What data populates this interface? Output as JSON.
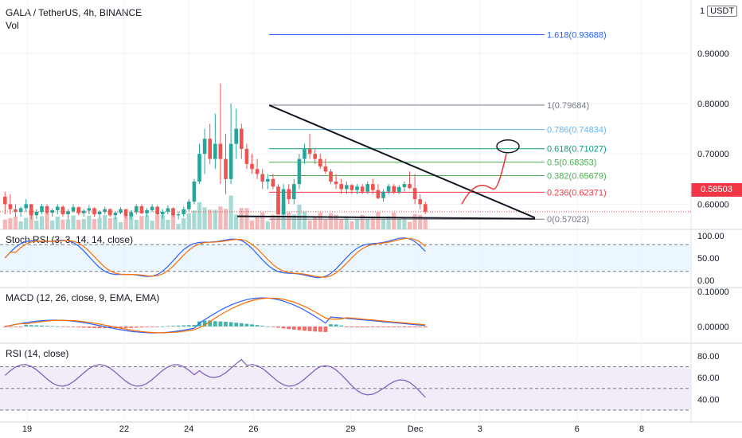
{
  "header": {
    "symbol": "GALA / TetherUS, 4h, BINANCE",
    "vol_label": "Vol",
    "currency_prefix": "1",
    "currency": "USDT",
    "last_price": "0.58503"
  },
  "panes": {
    "stoch_label": "Stoch RSI (3, 3, 14, 14, close)",
    "macd_label": "MACD (12, 26, close, 9, EMA, EMA)",
    "rsi_label": "RSI (14, close)"
  },
  "chart_data": {
    "type": "candlestick",
    "x_range": [
      18,
      9.2
    ],
    "x_ticks": [
      {
        "label": "19",
        "day": 19
      },
      {
        "label": "22",
        "day": 22
      },
      {
        "label": "24",
        "day": 24
      },
      {
        "label": "26",
        "day": 26
      },
      {
        "label": "29",
        "day": 29
      },
      {
        "label": "Dec",
        "day": 31
      },
      {
        "label": "3",
        "day": 33
      },
      {
        "label": "6",
        "day": 36
      },
      {
        "label": "8",
        "day": 38
      }
    ],
    "price_axis": {
      "min": 0.55,
      "max": 0.99,
      "ticks": [
        "0.90000",
        "0.80000",
        "0.70000",
        "0.60000"
      ]
    },
    "fib_levels": [
      {
        "ratio": "1.618",
        "price": 0.93688,
        "label": "1.618(0.93688)",
        "color": "#2962ff"
      },
      {
        "ratio": "1",
        "price": 0.79684,
        "label": "1(0.79684)",
        "color": "#787b86"
      },
      {
        "ratio": "0.786",
        "price": 0.74834,
        "label": "0.786(0.74834)",
        "color": "#64b5f6"
      },
      {
        "ratio": "0.618",
        "price": 0.71027,
        "label": "0.618(0.71027)",
        "color": "#089981"
      },
      {
        "ratio": "0.5",
        "price": 0.68353,
        "label": "0.5(0.68353)",
        "color": "#4caf50"
      },
      {
        "ratio": "0.382",
        "price": 0.65679,
        "label": "0.382(0.65679)",
        "color": "#4caf50"
      },
      {
        "ratio": "0.236",
        "price": 0.62371,
        "label": "0.236(0.62371)",
        "color": "#f23645"
      },
      {
        "ratio": "0",
        "price": 0.57023,
        "label": "0(0.57023)",
        "color": "#787b86"
      }
    ],
    "last_price": 0.58503,
    "candles": [
      [
        0.615,
        0.625,
        0.58,
        0.6
      ],
      [
        0.6,
        0.62,
        0.58,
        0.59
      ],
      [
        0.59,
        0.6,
        0.575,
        0.585
      ],
      [
        0.585,
        0.595,
        0.575,
        0.592
      ],
      [
        0.592,
        0.61,
        0.585,
        0.6
      ],
      [
        0.6,
        0.6,
        0.57,
        0.578
      ],
      [
        0.578,
        0.59,
        0.57,
        0.585
      ],
      [
        0.585,
        0.6,
        0.58,
        0.596
      ],
      [
        0.596,
        0.6,
        0.58,
        0.583
      ],
      [
        0.583,
        0.592,
        0.575,
        0.588
      ],
      [
        0.588,
        0.6,
        0.58,
        0.595
      ],
      [
        0.595,
        0.598,
        0.575,
        0.58
      ],
      [
        0.58,
        0.59,
        0.57,
        0.586
      ],
      [
        0.586,
        0.6,
        0.583,
        0.594
      ],
      [
        0.594,
        0.596,
        0.578,
        0.582
      ],
      [
        0.582,
        0.59,
        0.575,
        0.587
      ],
      [
        0.587,
        0.598,
        0.58,
        0.592
      ],
      [
        0.592,
        0.594,
        0.575,
        0.58
      ],
      [
        0.58,
        0.588,
        0.572,
        0.585
      ],
      [
        0.585,
        0.595,
        0.58,
        0.59
      ],
      [
        0.59,
        0.592,
        0.575,
        0.578
      ],
      [
        0.578,
        0.586,
        0.57,
        0.583
      ],
      [
        0.583,
        0.594,
        0.58,
        0.59
      ],
      [
        0.59,
        0.59,
        0.572,
        0.576
      ],
      [
        0.576,
        0.588,
        0.57,
        0.584
      ],
      [
        0.584,
        0.6,
        0.58,
        0.596
      ],
      [
        0.596,
        0.6,
        0.58,
        0.582
      ],
      [
        0.582,
        0.592,
        0.575,
        0.588
      ],
      [
        0.588,
        0.6,
        0.585,
        0.595
      ],
      [
        0.595,
        0.598,
        0.578,
        0.58
      ],
      [
        0.58,
        0.59,
        0.572,
        0.585
      ],
      [
        0.585,
        0.598,
        0.58,
        0.592
      ],
      [
        0.592,
        0.594,
        0.575,
        0.578
      ],
      [
        0.578,
        0.585,
        0.57,
        0.58
      ],
      [
        0.58,
        0.595,
        0.575,
        0.59
      ],
      [
        0.59,
        0.61,
        0.585,
        0.605
      ],
      [
        0.605,
        0.65,
        0.6,
        0.645
      ],
      [
        0.645,
        0.72,
        0.64,
        0.7
      ],
      [
        0.7,
        0.75,
        0.66,
        0.73
      ],
      [
        0.73,
        0.76,
        0.68,
        0.69
      ],
      [
        0.69,
        0.78,
        0.67,
        0.72
      ],
      [
        0.72,
        0.84,
        0.64,
        0.69
      ],
      [
        0.69,
        0.74,
        0.62,
        0.65
      ],
      [
        0.65,
        0.8,
        0.64,
        0.72
      ],
      [
        0.72,
        0.79,
        0.69,
        0.75
      ],
      [
        0.75,
        0.76,
        0.69,
        0.71
      ],
      [
        0.71,
        0.72,
        0.67,
        0.68
      ],
      [
        0.68,
        0.7,
        0.66,
        0.67
      ],
      [
        0.67,
        0.69,
        0.65,
        0.66
      ],
      [
        0.66,
        0.67,
        0.63,
        0.645
      ],
      [
        0.645,
        0.66,
        0.63,
        0.65
      ],
      [
        0.65,
        0.66,
        0.63,
        0.635
      ],
      [
        0.635,
        0.64,
        0.58,
        0.58
      ],
      [
        0.58,
        0.64,
        0.575,
        0.63
      ],
      [
        0.63,
        0.64,
        0.6,
        0.61
      ],
      [
        0.61,
        0.65,
        0.6,
        0.64
      ],
      [
        0.64,
        0.7,
        0.63,
        0.69
      ],
      [
        0.69,
        0.72,
        0.68,
        0.71
      ],
      [
        0.71,
        0.74,
        0.69,
        0.7
      ],
      [
        0.7,
        0.71,
        0.68,
        0.69
      ],
      [
        0.69,
        0.7,
        0.67,
        0.675
      ],
      [
        0.675,
        0.69,
        0.66,
        0.665
      ],
      [
        0.665,
        0.67,
        0.64,
        0.645
      ],
      [
        0.645,
        0.66,
        0.63,
        0.64
      ],
      [
        0.64,
        0.65,
        0.62,
        0.63
      ],
      [
        0.63,
        0.645,
        0.62,
        0.638
      ],
      [
        0.638,
        0.64,
        0.62,
        0.628
      ],
      [
        0.628,
        0.64,
        0.62,
        0.635
      ],
      [
        0.635,
        0.64,
        0.62,
        0.625
      ],
      [
        0.625,
        0.645,
        0.62,
        0.64
      ],
      [
        0.64,
        0.65,
        0.62,
        0.628
      ],
      [
        0.628,
        0.64,
        0.61,
        0.612
      ],
      [
        0.612,
        0.63,
        0.605,
        0.625
      ],
      [
        0.625,
        0.64,
        0.62,
        0.636
      ],
      [
        0.636,
        0.64,
        0.62,
        0.624
      ],
      [
        0.624,
        0.638,
        0.62,
        0.634
      ],
      [
        0.634,
        0.645,
        0.625,
        0.64
      ],
      [
        0.64,
        0.665,
        0.63,
        0.632
      ],
      [
        0.632,
        0.66,
        0.6,
        0.61
      ],
      [
        0.61,
        0.62,
        0.59,
        0.6
      ],
      [
        0.6,
        0.605,
        0.58,
        0.585
      ]
    ],
    "stoch_rsi": {
      "axis": [
        100,
        50,
        0
      ],
      "tick_labels": [
        "100.00",
        "50.00",
        "0.00"
      ]
    },
    "macd": {
      "tick_labels": [
        "0.10000",
        "0.00000"
      ]
    },
    "rsi": {
      "tick_labels": [
        "80.00",
        "60.00",
        "40.00"
      ]
    }
  },
  "colors": {
    "up": "#26a69a",
    "down": "#ef5350",
    "vol_up": "#a7d9d3",
    "vol_down": "#f4b6b6",
    "stoch_k": "#2962ff",
    "stoch_d": "#ff6d00",
    "rsi": "#7e57c2",
    "annotation": "#e53935"
  }
}
